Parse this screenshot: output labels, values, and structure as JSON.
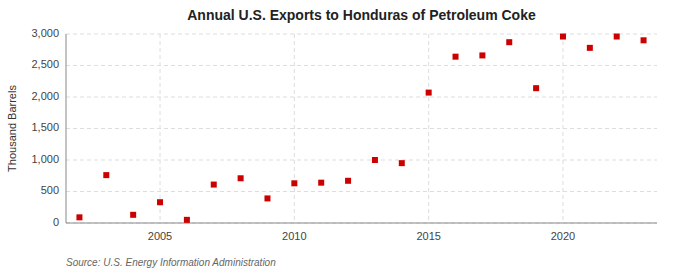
{
  "chart_data": {
    "type": "scatter",
    "title": "Annual U.S. Exports to Honduras of Petroleum Coke",
    "ylabel": "Thousand Barrels",
    "source": "Source: U.S. Energy Information Administration",
    "x": [
      2002,
      2003,
      2004,
      2005,
      2006,
      2007,
      2008,
      2009,
      2010,
      2011,
      2012,
      2013,
      2014,
      2015,
      2016,
      2017,
      2018,
      2019,
      2020,
      2021,
      2022,
      2023
    ],
    "values": [
      90,
      760,
      130,
      330,
      50,
      610,
      710,
      390,
      630,
      640,
      670,
      1000,
      950,
      2070,
      2640,
      2660,
      2870,
      2140,
      2960,
      2780,
      2960,
      2900
    ],
    "color": "#cc0000",
    "marker": "square",
    "xlim": [
      2001.5,
      2023.5
    ],
    "xticks": [
      2005,
      2010,
      2015,
      2020
    ],
    "ylim": [
      0,
      3000
    ],
    "yticks": [
      0,
      500,
      {
        "value": 1000,
        "label": "1,000"
      },
      {
        "value": 1500,
        "label": "1,500"
      },
      {
        "value": 2000,
        "label": "2,000"
      },
      {
        "value": 2500,
        "label": "2,500"
      },
      {
        "value": 3000,
        "label": "3,000"
      }
    ],
    "grid": true
  }
}
